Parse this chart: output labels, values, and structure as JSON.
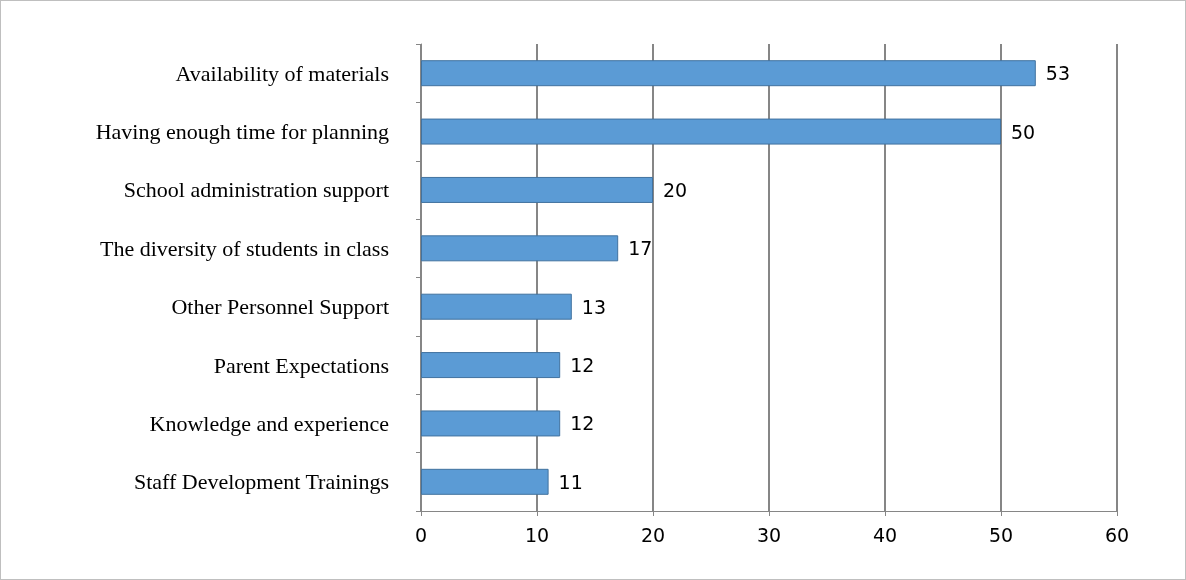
{
  "chart_data": {
    "type": "bar",
    "orientation": "horizontal",
    "categories": [
      "Availability of materials",
      "Having enough time for planning",
      "School administration support",
      "The diversity of students in class",
      "Other Personnel Support",
      "Parent Expectations",
      "Knowledge and experience",
      "Staff Development Trainings"
    ],
    "values": [
      53,
      50,
      20,
      17,
      13,
      12,
      12,
      11
    ],
    "color": "#5b9bd5",
    "xlim": [
      0,
      60
    ],
    "xticks": [
      0,
      10,
      20,
      30,
      40,
      50,
      60
    ],
    "grid": "x",
    "data_labels": true
  }
}
